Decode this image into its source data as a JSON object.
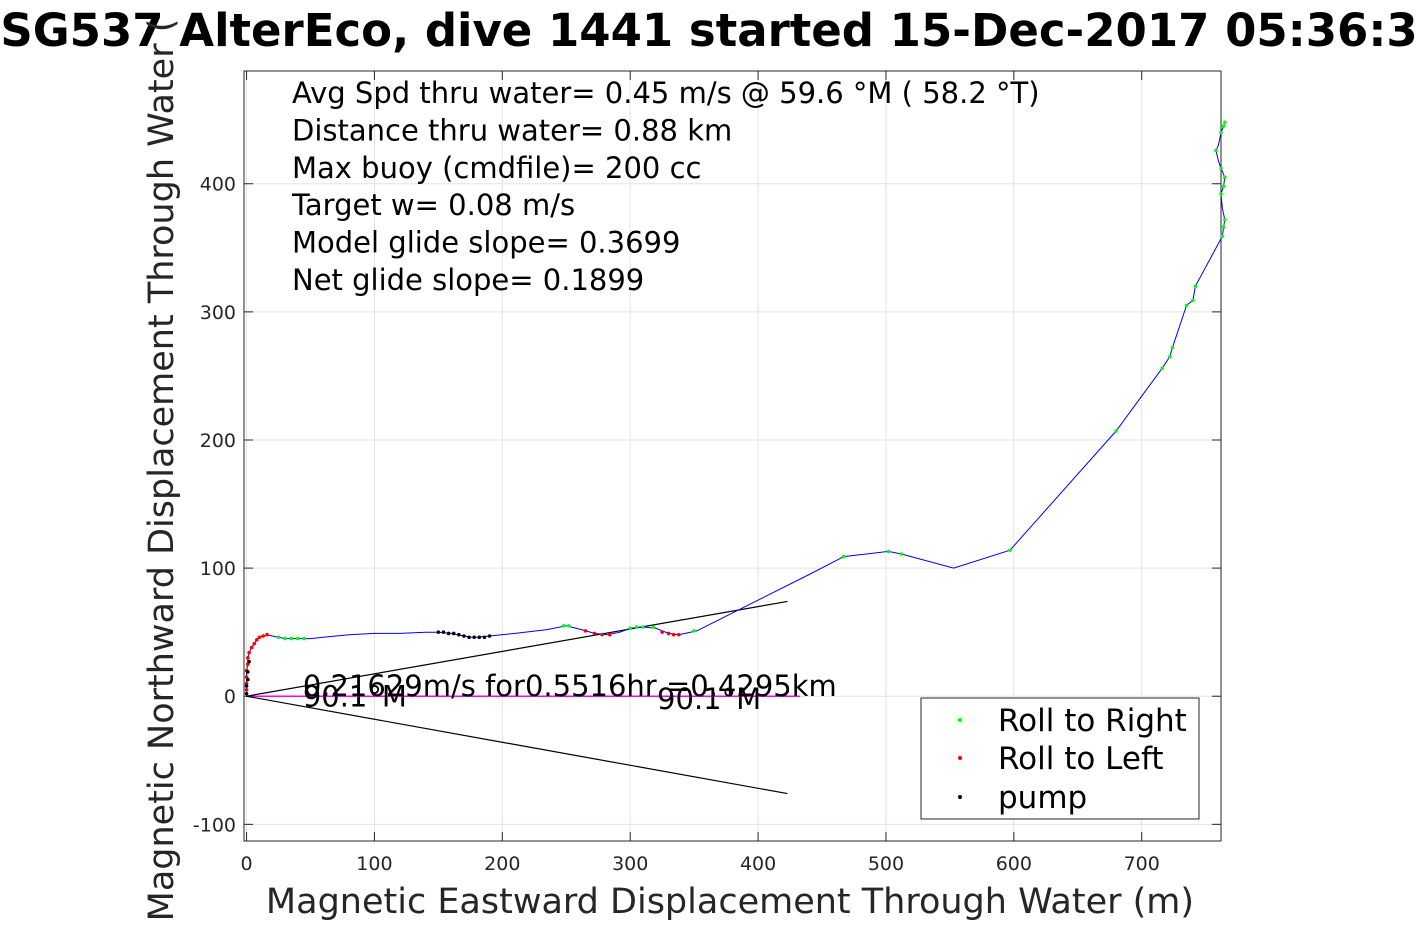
{
  "chart_data": {
    "type": "line",
    "title": "SG537 AlterEco, dive 1441 started 15-Dec-2017 05:36:3",
    "xlabel": "Magnetic Eastward Displacement Through Water (m)",
    "ylabel": "Magnetic Northward Displacement Through Water (",
    "xlim": [
      -2,
      762
    ],
    "ylim": [
      -113,
      488
    ],
    "xticks": [
      0,
      100,
      200,
      300,
      400,
      500,
      600,
      700
    ],
    "yticks": [
      -100,
      0,
      100,
      200,
      300,
      400
    ],
    "grid": true,
    "info_lines": [
      "Avg Spd thru water=  0.45 m/s @  59.6 °M ( 58.2 °T)",
      "Distance thru water=  0.88 km",
      "Max buoy (cmdfile)= 200 cc",
      "Target w= 0.08 m/s",
      "Model glide slope= 0.3699",
      "Net glide slope= 0.1899"
    ],
    "annotations": [
      {
        "text": "0.21629m/s for0.5516hr =0.4295km",
        "x": 44,
        "y": 0
      },
      {
        "text": "90.1°M",
        "x": 44,
        "y": -8
      },
      {
        "text": "90.1°M",
        "x": 321,
        "y": -10
      }
    ],
    "track": {
      "color": "#0000ff",
      "points": [
        [
          0,
          0
        ],
        [
          0,
          5
        ],
        [
          0,
          10
        ],
        [
          0,
          15
        ],
        [
          0,
          20
        ],
        [
          1,
          25
        ],
        [
          1,
          30
        ],
        [
          2,
          34
        ],
        [
          4,
          38
        ],
        [
          6,
          41
        ],
        [
          8,
          44
        ],
        [
          10,
          46
        ],
        [
          13,
          47
        ],
        [
          16,
          48
        ],
        [
          20,
          47
        ],
        [
          25,
          46
        ],
        [
          30,
          45
        ],
        [
          40,
          45
        ],
        [
          50,
          45
        ],
        [
          60,
          46
        ],
        [
          80,
          48
        ],
        [
          100,
          49
        ],
        [
          120,
          49
        ],
        [
          140,
          50
        ],
        [
          150,
          50
        ],
        [
          160,
          49
        ],
        [
          170,
          47
        ],
        [
          175,
          46
        ],
        [
          180,
          46
        ],
        [
          190,
          47
        ],
        [
          210,
          49
        ],
        [
          235,
          52
        ],
        [
          250,
          55
        ],
        [
          262,
          52
        ],
        [
          272,
          49
        ],
        [
          282,
          48
        ],
        [
          292,
          50
        ],
        [
          300,
          53
        ],
        [
          310,
          54
        ],
        [
          320,
          53
        ],
        [
          330,
          49
        ],
        [
          338,
          48
        ],
        [
          352,
          51
        ],
        [
          380,
          65
        ],
        [
          410,
          80
        ],
        [
          440,
          95
        ],
        [
          467,
          109
        ],
        [
          502,
          113
        ],
        [
          512,
          111
        ],
        [
          553,
          100
        ],
        [
          597,
          114
        ],
        [
          680,
          207
        ],
        [
          716,
          256
        ],
        [
          722,
          265
        ],
        [
          724,
          272
        ],
        [
          735,
          305
        ],
        [
          740,
          309
        ],
        [
          742,
          320
        ],
        [
          763,
          359
        ],
        [
          764,
          366
        ],
        [
          765,
          372
        ],
        [
          763,
          381
        ],
        [
          762,
          392
        ],
        [
          764,
          398
        ],
        [
          765,
          405
        ],
        [
          762,
          412
        ],
        [
          760,
          418
        ],
        [
          758,
          426
        ],
        [
          760,
          430
        ],
        [
          762,
          440
        ],
        [
          764,
          445
        ],
        [
          765,
          448
        ]
      ]
    },
    "current_line": {
      "from": [
        0,
        0
      ],
      "to": [
        433,
        0
      ],
      "color": "#ff00ff"
    },
    "heading_lines": [
      {
        "from": [
          0,
          0
        ],
        "to": [
          423,
          74
        ]
      },
      {
        "from": [
          0,
          0
        ],
        "to": [
          423,
          -76
        ]
      }
    ],
    "series": [
      {
        "name": "Roll to Right",
        "color": "#00ff00",
        "points": [
          [
            25,
            46
          ],
          [
            30,
            45
          ],
          [
            35,
            45
          ],
          [
            40,
            45
          ],
          [
            45,
            45
          ],
          [
            248,
            55
          ],
          [
            252,
            55
          ],
          [
            300,
            53
          ],
          [
            305,
            54
          ],
          [
            310,
            54
          ],
          [
            318,
            54
          ],
          [
            350,
            51
          ],
          [
            467,
            109
          ],
          [
            502,
            113
          ],
          [
            512,
            111
          ],
          [
            597,
            114
          ],
          [
            680,
            207
          ],
          [
            716,
            256
          ],
          [
            722,
            265
          ],
          [
            724,
            272
          ],
          [
            735,
            305
          ],
          [
            740,
            309
          ],
          [
            742,
            320
          ],
          [
            763,
            359
          ],
          [
            764,
            366
          ],
          [
            765,
            372
          ],
          [
            762,
            392
          ],
          [
            764,
            398
          ],
          [
            765,
            405
          ],
          [
            762,
            412
          ],
          [
            758,
            426
          ],
          [
            762,
            440
          ],
          [
            764,
            445
          ],
          [
            765,
            448
          ]
        ]
      },
      {
        "name": "Roll to Left",
        "color": "#ff0000",
        "points": [
          [
            0,
            5
          ],
          [
            0,
            10
          ],
          [
            0,
            15
          ],
          [
            0,
            20
          ],
          [
            1,
            25
          ],
          [
            1,
            30
          ],
          [
            2,
            34
          ],
          [
            4,
            38
          ],
          [
            6,
            41
          ],
          [
            8,
            44
          ],
          [
            10,
            46
          ],
          [
            13,
            47
          ],
          [
            16,
            48
          ],
          [
            265,
            51
          ],
          [
            272,
            49
          ],
          [
            278,
            48
          ],
          [
            284,
            48
          ],
          [
            325,
            50
          ],
          [
            330,
            49
          ],
          [
            334,
            48
          ],
          [
            338,
            48
          ]
        ]
      },
      {
        "name": "pump",
        "color": "#000000",
        "points": [
          [
            0,
            2
          ],
          [
            0,
            8
          ],
          [
            1,
            13
          ],
          [
            1,
            19
          ],
          [
            2,
            27
          ],
          [
            150,
            50
          ],
          [
            154,
            50
          ],
          [
            158,
            49
          ],
          [
            162,
            49
          ],
          [
            166,
            48
          ],
          [
            170,
            47
          ],
          [
            174,
            46
          ],
          [
            178,
            46
          ],
          [
            182,
            46
          ],
          [
            186,
            46
          ],
          [
            190,
            47
          ]
        ]
      }
    ],
    "legend": {
      "position": "bottom-right"
    }
  }
}
